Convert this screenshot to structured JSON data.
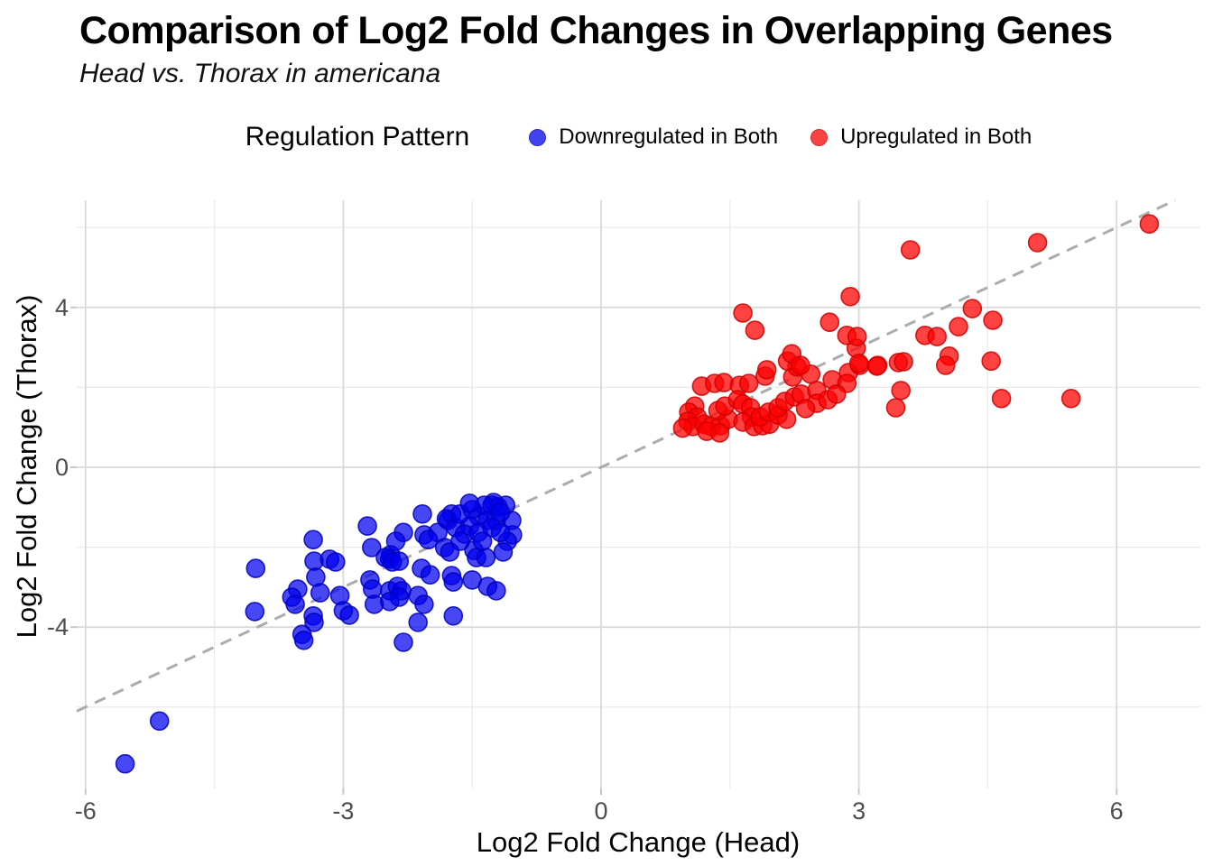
{
  "header": {
    "title": "Comparison of Log2 Fold Changes in Overlapping Genes",
    "subtitle": "Head vs. Thorax in americana"
  },
  "legend": {
    "title": "Regulation Pattern",
    "items": [
      {
        "label": "Downregulated in Both",
        "color": "#4242EE",
        "stroke": "#2B2BC8"
      },
      {
        "label": "Upregulated in Both",
        "color": "#F94343",
        "stroke": "#D32F2F"
      }
    ]
  },
  "axes": {
    "x": {
      "title": "Log2 Fold Change (Head)",
      "ticks": [
        "-6",
        "-3",
        "0",
        "3",
        "6"
      ],
      "tick_values": [
        -6,
        -3,
        0,
        3,
        6
      ],
      "minor_values": [
        -4.5,
        -1.5,
        1.5,
        4.5
      ],
      "range": [
        -6.1,
        7.0
      ]
    },
    "y": {
      "title": "Log2 Fold Change (Thorax)",
      "ticks": [
        "-4",
        "0",
        "4"
      ],
      "tick_values": [
        -4,
        0,
        4
      ],
      "minor_values": [
        -6,
        -2,
        2,
        6
      ],
      "range": [
        -8.0,
        6.7
      ]
    }
  },
  "colors": {
    "grid_major": "#DADADA",
    "grid_minor": "#E9E9E9",
    "axis_tick": "#C8C8C8",
    "tick_text": "#4D4D4D",
    "reference_line": "#ACACAC",
    "background": "#FFFFFF"
  },
  "chart_data": {
    "type": "scatter",
    "title": "Comparison of Log2 Fold Changes in Overlapping Genes",
    "subtitle": "Head vs. Thorax in americana",
    "xlabel": "Log2 Fold Change (Head)",
    "ylabel": "Log2 Fold Change (Thorax)",
    "xlim": [
      -6.1,
      7.0
    ],
    "ylim": [
      -8.0,
      6.7
    ],
    "grid": true,
    "legend_position": "top",
    "reference_line": {
      "equation": "y = x",
      "style": "dashed",
      "color": "#ACACAC"
    },
    "series": [
      {
        "name": "Downregulated in Both",
        "fill": "#0000EE",
        "stroke": "#0000BB",
        "opacity": 0.72,
        "points": [
          [
            -5.54,
            -7.42
          ],
          [
            -5.14,
            -6.35
          ],
          [
            -4.02,
            -2.53
          ],
          [
            -4.03,
            -3.61
          ],
          [
            -3.35,
            -1.81
          ],
          [
            -3.34,
            -2.35
          ],
          [
            -3.32,
            -2.75
          ],
          [
            -3.16,
            -2.3
          ],
          [
            -3.09,
            -2.37
          ],
          [
            -3.27,
            -3.14
          ],
          [
            -3.53,
            -3.05
          ],
          [
            -3.6,
            -3.25
          ],
          [
            -3.56,
            -3.43
          ],
          [
            -3.35,
            -3.72
          ],
          [
            -3.34,
            -3.88
          ],
          [
            -3.48,
            -4.18
          ],
          [
            -3.46,
            -4.33
          ],
          [
            -3.04,
            -3.21
          ],
          [
            -3.0,
            -3.59
          ],
          [
            -2.93,
            -3.7
          ],
          [
            -2.72,
            -1.47
          ],
          [
            -2.67,
            -2.01
          ],
          [
            -2.69,
            -2.82
          ],
          [
            -2.66,
            -3.05
          ],
          [
            -2.64,
            -3.43
          ],
          [
            -2.3,
            -1.63
          ],
          [
            -2.39,
            -1.85
          ],
          [
            -2.45,
            -2.19
          ],
          [
            -2.46,
            -2.3
          ],
          [
            -2.51,
            -2.26
          ],
          [
            -2.43,
            -2.37
          ],
          [
            -2.35,
            -2.35
          ],
          [
            -2.46,
            -3.09
          ],
          [
            -2.37,
            -2.98
          ],
          [
            -2.32,
            -3.09
          ],
          [
            -2.35,
            -3.25
          ],
          [
            -2.46,
            -3.36
          ],
          [
            -2.3,
            -4.38
          ],
          [
            -2.08,
            -1.17
          ],
          [
            -2.06,
            -1.69
          ],
          [
            -2.09,
            -2.53
          ],
          [
            -1.99,
            -2.69
          ],
          [
            -2.13,
            -3.21
          ],
          [
            -2.06,
            -3.43
          ],
          [
            -2.13,
            -3.88
          ],
          [
            -1.78,
            -1.33
          ],
          [
            -1.74,
            -1.17
          ],
          [
            -1.82,
            -2.01
          ],
          [
            -1.76,
            -2.12
          ],
          [
            -1.74,
            -2.71
          ],
          [
            -1.72,
            -2.87
          ],
          [
            -1.72,
            -3.72
          ],
          [
            -1.43,
            -1.22
          ],
          [
            -1.27,
            -0.95
          ],
          [
            -1.2,
            -0.99
          ],
          [
            -1.11,
            -0.95
          ],
          [
            -1.25,
            -0.88
          ],
          [
            -1.36,
            -0.95
          ],
          [
            -1.5,
            -1.06
          ],
          [
            -1.53,
            -1.47
          ],
          [
            -1.32,
            -1.33
          ],
          [
            -1.22,
            -1.33
          ],
          [
            -1.04,
            -1.33
          ],
          [
            -1.03,
            -1.69
          ],
          [
            -1.09,
            -1.85
          ],
          [
            -1.14,
            -2.12
          ],
          [
            -1.48,
            -2.08
          ],
          [
            -1.45,
            -2.26
          ],
          [
            -1.34,
            -2.26
          ],
          [
            -1.5,
            -2.82
          ],
          [
            -1.32,
            -2.98
          ],
          [
            -1.22,
            -3.09
          ],
          [
            -1.8,
            -1.29
          ],
          [
            -1.69,
            -1.51
          ],
          [
            -1.64,
            -1.17
          ],
          [
            -1.59,
            -1.67
          ],
          [
            -1.43,
            -1.63
          ],
          [
            -1.27,
            -1.51
          ],
          [
            -1.17,
            -1.63
          ],
          [
            -1.38,
            -1.85
          ],
          [
            -1.64,
            -1.85
          ],
          [
            -1.9,
            -1.63
          ],
          [
            -2.01,
            -1.81
          ],
          [
            -1.53,
            -0.9
          ],
          [
            -1.17,
            -1.13
          ]
        ]
      },
      {
        "name": "Upregulated in Both",
        "fill": "#FF0000",
        "stroke": "#CC0000",
        "opacity": 0.74,
        "points": [
          [
            1.17,
            2.03
          ],
          [
            1.32,
            2.1
          ],
          [
            1.43,
            2.12
          ],
          [
            1.61,
            2.05
          ],
          [
            1.72,
            2.1
          ],
          [
            1.91,
            2.28
          ],
          [
            2.23,
            2.26
          ],
          [
            2.28,
            2.51
          ],
          [
            2.44,
            2.33
          ],
          [
            2.69,
            2.19
          ],
          [
            2.88,
            2.37
          ],
          [
            2.86,
            2.1
          ],
          [
            2.17,
            2.66
          ],
          [
            3.01,
            2.55
          ],
          [
            3.22,
            2.55
          ],
          [
            3.46,
            2.62
          ],
          [
            3.49,
            1.92
          ],
          [
            3.43,
            1.49
          ],
          [
            1.09,
            1.53
          ],
          [
            1.02,
            1.38
          ],
          [
            1.12,
            1.26
          ],
          [
            1.01,
            1.15
          ],
          [
            1.07,
            1.02
          ],
          [
            1.2,
            1.08
          ],
          [
            1.28,
            1.02
          ],
          [
            1.39,
            1.04
          ],
          [
            1.48,
            1.2
          ],
          [
            1.36,
            1.42
          ],
          [
            1.44,
            1.53
          ],
          [
            1.59,
            1.69
          ],
          [
            1.65,
            1.58
          ],
          [
            1.74,
            1.49
          ],
          [
            1.75,
            1.26
          ],
          [
            1.65,
            1.13
          ],
          [
            1.78,
            1.02
          ],
          [
            1.88,
            1.04
          ],
          [
            1.96,
            1.08
          ],
          [
            1.85,
            1.26
          ],
          [
            1.95,
            1.38
          ],
          [
            2.06,
            1.31
          ],
          [
            2.16,
            1.2
          ],
          [
            2.06,
            1.49
          ],
          [
            2.14,
            1.65
          ],
          [
            2.25,
            1.76
          ],
          [
            2.33,
            1.83
          ],
          [
            2.51,
            1.92
          ],
          [
            2.51,
            1.6
          ],
          [
            2.64,
            1.69
          ],
          [
            2.74,
            1.83
          ],
          [
            2.38,
            1.47
          ],
          [
            0.95,
            0.98
          ],
          [
            1.23,
            0.9
          ],
          [
            1.38,
            0.86
          ],
          [
            1.65,
            3.86
          ],
          [
            1.79,
            3.43
          ],
          [
            2.66,
            3.63
          ],
          [
            2.22,
            2.84
          ],
          [
            2.9,
            4.27
          ],
          [
            2.97,
            2.98
          ],
          [
            3.0,
            2.6
          ],
          [
            3.21,
            2.53
          ],
          [
            2.32,
            2.55
          ],
          [
            1.93,
            2.44
          ],
          [
            2.86,
            3.3
          ],
          [
            2.98,
            3.27
          ],
          [
            3.6,
            5.44
          ],
          [
            5.08,
            5.62
          ],
          [
            6.38,
            6.09
          ],
          [
            4.32,
            3.97
          ],
          [
            4.56,
            3.68
          ],
          [
            4.16,
            3.52
          ],
          [
            3.77,
            3.3
          ],
          [
            3.91,
            3.27
          ],
          [
            4.05,
            2.78
          ],
          [
            4.01,
            2.55
          ],
          [
            4.54,
            2.66
          ],
          [
            3.52,
            2.64
          ],
          [
            4.66,
            1.72
          ],
          [
            5.47,
            1.72
          ]
        ]
      }
    ]
  }
}
